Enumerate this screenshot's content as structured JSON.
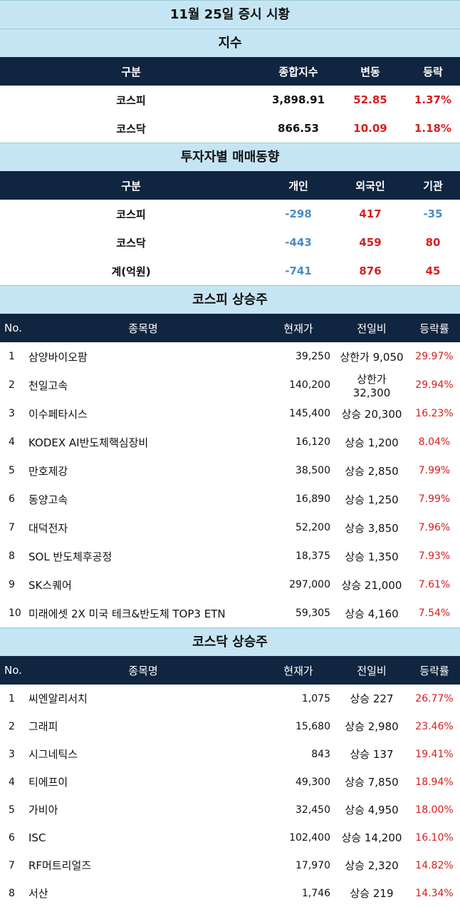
{
  "title": "11월 25일 증시 시황",
  "index": {
    "title": "지수",
    "headers": [
      "구분",
      "종합지수",
      "변동",
      "등락"
    ],
    "rows": [
      [
        "코스피",
        "3,898.91",
        "52.85",
        "1.37%"
      ],
      [
        "코스닥",
        "866.53",
        "10.09",
        "1.18%"
      ]
    ]
  },
  "investors": {
    "title": "투자자별 매매동향",
    "headers": [
      "구분",
      "개인",
      "외국인",
      "기관"
    ],
    "rows": [
      [
        "코스피",
        "-298",
        "417",
        "-35"
      ],
      [
        "코스닥",
        "-443",
        "459",
        "80"
      ],
      [
        "계(억원)",
        "-741",
        "876",
        "45"
      ]
    ]
  },
  "kospi_gainers": {
    "title": "코스피 상승주",
    "headers": [
      "No.",
      "종목명",
      "현재가",
      "전일비",
      "등락률"
    ],
    "rows": [
      [
        "1",
        "삼양바이오팜",
        "39,250",
        "상한가 9,050",
        "29.97%"
      ],
      [
        "2",
        "천일고속",
        "140,200",
        "상한가 32,300",
        "29.94%"
      ],
      [
        "3",
        "이수페타시스",
        "145,400",
        "상승 20,300",
        "16.23%"
      ],
      [
        "4",
        "KODEX AI반도체핵심장비",
        "16,120",
        "상승 1,200",
        "8.04%"
      ],
      [
        "5",
        "만호제강",
        "38,500",
        "상승 2,850",
        "7.99%"
      ],
      [
        "6",
        "동양고속",
        "16,890",
        "상승 1,250",
        "7.99%"
      ],
      [
        "7",
        "대덕전자",
        "52,200",
        "상승 3,850",
        "7.96%"
      ],
      [
        "8",
        "SOL 반도체후공정",
        "18,375",
        "상승 1,350",
        "7.93%"
      ],
      [
        "9",
        "SK스퀘어",
        "297,000",
        "상승 21,000",
        "7.61%"
      ],
      [
        "10",
        "미래에셋 2X 미국 테크&반도체 TOP3 ETN",
        "59,305",
        "상승 4,160",
        "7.54%"
      ]
    ]
  },
  "kosdaq_gainers": {
    "title": "코스닥 상승주",
    "headers": [
      "No.",
      "종목명",
      "현재가",
      "전일비",
      "등락률"
    ],
    "rows": [
      [
        "1",
        "씨엔알리서치",
        "1,075",
        "상승 227",
        "26.77%"
      ],
      [
        "2",
        "그래피",
        "15,680",
        "상승 2,980",
        "23.46%"
      ],
      [
        "3",
        "시그네틱스",
        "843",
        "상승 137",
        "19.41%"
      ],
      [
        "4",
        "티에프이",
        "49,300",
        "상승 7,850",
        "18.94%"
      ],
      [
        "5",
        "가비아",
        "32,450",
        "상승 4,950",
        "18.00%"
      ],
      [
        "6",
        "ISC",
        "102,400",
        "상승 14,200",
        "16.10%"
      ],
      [
        "7",
        "RF머트리얼즈",
        "17,970",
        "상승 2,320",
        "14.82%"
      ],
      [
        "8",
        "서산",
        "1,746",
        "상승 219",
        "14.34%"
      ]
    ]
  }
}
